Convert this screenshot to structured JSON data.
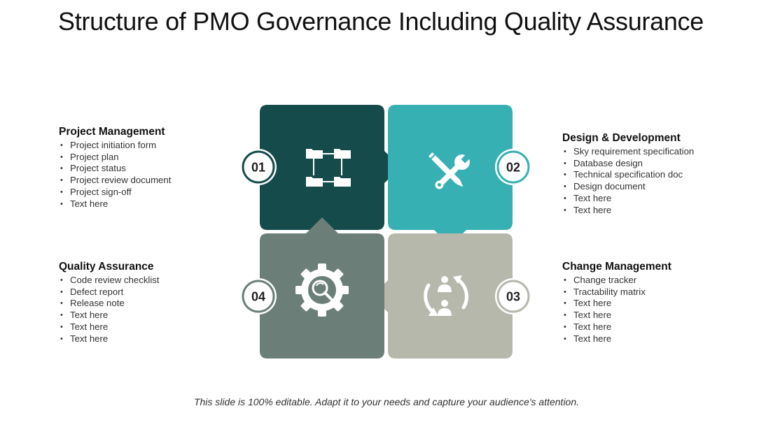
{
  "title": "Structure of PMO Governance Including Quality Assurance",
  "quadrants": [
    {
      "number": "01",
      "heading": "Project Management",
      "items": [
        "Project initiation form",
        "Project plan",
        "Project status",
        "Project review document",
        "Project sign-off",
        "Text here"
      ],
      "color": "#154b4b",
      "icon": "folder-network-icon"
    },
    {
      "number": "02",
      "heading": "Design & Development",
      "items": [
        "Sky requirement specification",
        "Database design",
        "Technical specification doc",
        "Design document",
        "Text here",
        "Text here"
      ],
      "color": "#36b0b3",
      "icon": "pencil-wrench-icon"
    },
    {
      "number": "03",
      "heading": "Change Management",
      "items": [
        "Change tracker",
        "Tractability matrix",
        "Text here",
        "Text here",
        "Text here",
        "Text here"
      ],
      "color": "#b7b8ac",
      "icon": "people-exchange-icon"
    },
    {
      "number": "04",
      "heading": "Quality Assurance",
      "items": [
        "Code review checklist",
        "Defect report",
        "Release note",
        "Text here",
        "Text here",
        "Text here"
      ],
      "color": "#6b7f78",
      "icon": "gear-search-icon"
    }
  ],
  "footer": "This slide is 100% editable. Adapt it to your needs and capture your audience's attention."
}
